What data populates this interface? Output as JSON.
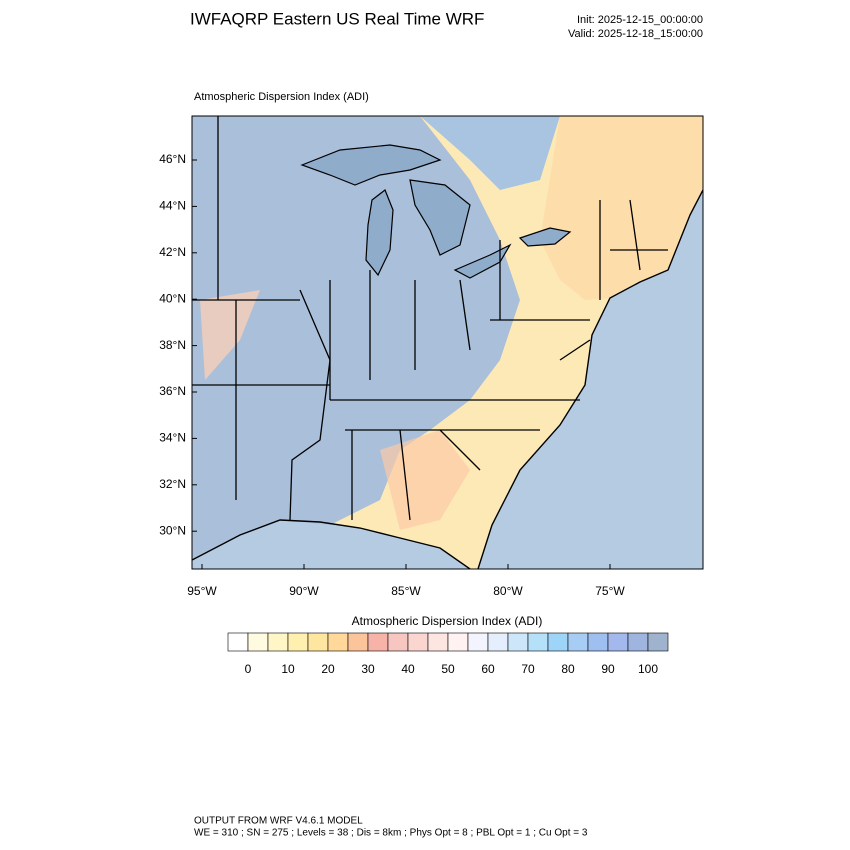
{
  "header": {
    "title": "IWFAQRP Eastern US Real Time WRF",
    "init": "Init: 2025-12-15_00:00:00",
    "valid": "Valid: 2025-12-18_15:00:00"
  },
  "map": {
    "title": "Atmospheric Dispersion Index   (ADI)",
    "lat_labels": [
      "46°N",
      "44°N",
      "42°N",
      "40°N",
      "38°N",
      "36°N",
      "34°N",
      "32°N",
      "30°N"
    ],
    "lon_labels": [
      "95°W",
      "90°W",
      "85°W",
      "80°W",
      "75°W"
    ]
  },
  "colorbar": {
    "title": "Atmospheric Dispersion Index  (ADI)",
    "ticks": [
      0,
      10,
      20,
      30,
      40,
      50,
      60,
      70,
      80,
      90,
      100
    ],
    "colors": [
      "#ffffff",
      "#fffbe0",
      "#fff6c8",
      "#fff0b0",
      "#ffe6a0",
      "#ffd89a",
      "#fcc49a",
      "#f7b3a8",
      "#f8c6c0",
      "#fbd6d0",
      "#fde6e2",
      "#fff2f0",
      "#f4f4ff",
      "#e4eefc",
      "#cde6fa",
      "#b4e0fa",
      "#9ed4f8",
      "#a8cdf4",
      "#9fbff0",
      "#a3b8ec",
      "#a0b4e0",
      "#9fb3cf"
    ]
  },
  "footer": {
    "line1": "OUTPUT FROM WRF V4.6.1 MODEL",
    "line2": "WE = 310 ; SN = 275 ; Levels = 38 ; Dis = 8km ; Phys Opt = 8 ; PBL Opt = 1 ; Cu Opt = 3"
  }
}
